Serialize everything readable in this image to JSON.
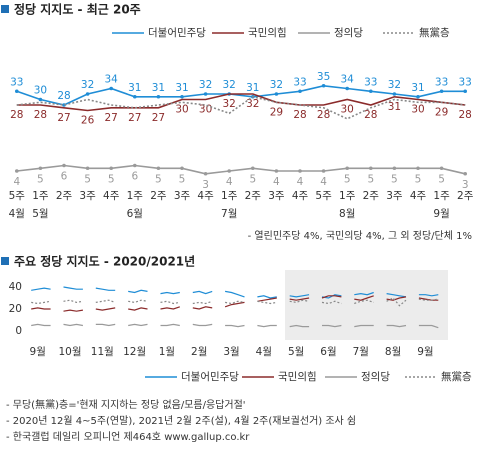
{
  "chart_data": [
    {
      "type": "line",
      "title": "정당 지지도 - 최근 20주",
      "categories": [
        "5주",
        "1주",
        "2주",
        "3주",
        "4주",
        "1주",
        "2주",
        "3주",
        "4주",
        "1주",
        "2주",
        "3주",
        "4주",
        "5주",
        "1주",
        "2주",
        "3주",
        "4주",
        "1주",
        "2주"
      ],
      "category_groups": [
        "4월",
        "5월",
        null,
        null,
        null,
        "6월",
        null,
        null,
        null,
        "7월",
        null,
        null,
        null,
        null,
        "8월",
        null,
        null,
        null,
        "9월",
        null
      ],
      "ylim": [
        0,
        40
      ],
      "series": [
        {
          "name": "더불어민주당",
          "color": "#1f8dd6",
          "line_style": "solid",
          "values": [
            33,
            30,
            28,
            32,
            34,
            31,
            31,
            31,
            32,
            32,
            31,
            32,
            33,
            35,
            34,
            33,
            32,
            31,
            33,
            33
          ]
        },
        {
          "name": "국민의힘",
          "color": "#8b2b2b",
          "line_style": "solid",
          "values": [
            28,
            28,
            27,
            26,
            27,
            27,
            27,
            30,
            30,
            32,
            32,
            29,
            28,
            28,
            30,
            28,
            31,
            30,
            29,
            28
          ]
        },
        {
          "name": "정의당",
          "color": "#9a9a9a",
          "line_style": "solid",
          "values": [
            4,
            5,
            6,
            5,
            5,
            6,
            5,
            5,
            3,
            4,
            5,
            4,
            4,
            4,
            5,
            5,
            5,
            5,
            5,
            3
          ]
        },
        {
          "name": "無黨층",
          "color": "#888888",
          "line_style": "dotted",
          "values": [
            28,
            29,
            28,
            30,
            28,
            27,
            28,
            29,
            28,
            25,
            31,
            29,
            28,
            27,
            23,
            27,
            30,
            29,
            29,
            28
          ]
        }
      ],
      "note": "- 열린민주당 4%, 국민의당 4%, 그 외 정당/단체 1%"
    },
    {
      "type": "line",
      "title": "주요 정당 지지도 - 2020/2021년",
      "categories": [
        null,
        "9월",
        null,
        null,
        null,
        null,
        "10월",
        null,
        null,
        null,
        null,
        "11월",
        null,
        null,
        null,
        null,
        "12월",
        null,
        null,
        null,
        null,
        "1월",
        null,
        null,
        null,
        null,
        "2월",
        null,
        null,
        null,
        null,
        "3월",
        null,
        null,
        null,
        null,
        "4월",
        null,
        null,
        null,
        null,
        "5월",
        null,
        null,
        null,
        null,
        "6월",
        null,
        null,
        null,
        null,
        "7월",
        null,
        null,
        null,
        null,
        "8월",
        null,
        null,
        null,
        null,
        "9월",
        null,
        null,
        null
      ],
      "ylim": [
        0,
        45
      ],
      "yticks": [
        0,
        20,
        40
      ],
      "series": [
        {
          "name": "더불어민주당",
          "color": "#1f8dd6",
          "line_style": "solid",
          "values": [
            37,
            38,
            39,
            38,
            null,
            40,
            39,
            38,
            38,
            null,
            39,
            38,
            37,
            37,
            null,
            36,
            35,
            37,
            36,
            null,
            34,
            35,
            34,
            35,
            null,
            35,
            36,
            34,
            36,
            null,
            36,
            35,
            33,
            31,
            null,
            31,
            32,
            30,
            31,
            null,
            32,
            31,
            32,
            33,
            null,
            31,
            30,
            33,
            32,
            null,
            33,
            34,
            33,
            35,
            null,
            34,
            33,
            32,
            31,
            null,
            33,
            33,
            32,
            33,
            null
          ]
        },
        {
          "name": "국민의힘",
          "color": "#8b2b2b",
          "line_style": "solid",
          "values": [
            20,
            21,
            20,
            20,
            null,
            18,
            19,
            18,
            19,
            null,
            20,
            19,
            20,
            21,
            null,
            20,
            19,
            21,
            20,
            null,
            20,
            21,
            20,
            22,
            null,
            21,
            20,
            22,
            21,
            null,
            22,
            24,
            25,
            26,
            null,
            27,
            28,
            29,
            30,
            null,
            29,
            28,
            29,
            30,
            null,
            30,
            32,
            32,
            31,
            null,
            29,
            28,
            30,
            32,
            null,
            29,
            28,
            30,
            31,
            null,
            30,
            29,
            28,
            28,
            null
          ]
        },
        {
          "name": "정의당",
          "color": "#9a9a9a",
          "line_style": "solid",
          "values": [
            5,
            6,
            5,
            5,
            null,
            6,
            5,
            6,
            5,
            null,
            6,
            6,
            5,
            6,
            null,
            5,
            6,
            5,
            6,
            null,
            5,
            5,
            6,
            5,
            null,
            6,
            5,
            5,
            6,
            null,
            5,
            5,
            4,
            5,
            null,
            5,
            4,
            5,
            5,
            null,
            4,
            5,
            4,
            4,
            null,
            5,
            5,
            4,
            5,
            null,
            4,
            5,
            5,
            5,
            null,
            5,
            5,
            4,
            5,
            null,
            5,
            5,
            5,
            3,
            null
          ]
        },
        {
          "name": "無黨층",
          "color": "#888888",
          "line_style": "dotted",
          "values": [
            26,
            25,
            26,
            27,
            null,
            27,
            28,
            26,
            27,
            null,
            26,
            27,
            28,
            26,
            null,
            27,
            26,
            28,
            27,
            null,
            26,
            27,
            25,
            26,
            null,
            25,
            26,
            25,
            27,
            null,
            26,
            25,
            27,
            26,
            null,
            27,
            26,
            25,
            26,
            null,
            27,
            26,
            28,
            27,
            null,
            26,
            25,
            27,
            25,
            null,
            25,
            27,
            28,
            26,
            null,
            27,
            30,
            23,
            28,
            null,
            29,
            28,
            28,
            29,
            null
          ]
        }
      ],
      "notes": [
        "- 무당(無黨)층='현재 지지하는 정당 없음/모름/응답거절'",
        "- 2020년 12월 4~5주(연말), 2021년 2월 2주(설), 4월 2주(재보궐선거) 조사 쉼",
        "- 한국갤럽 데일리 오피니언 제464호 www.gallup.co.kr"
      ]
    }
  ]
}
